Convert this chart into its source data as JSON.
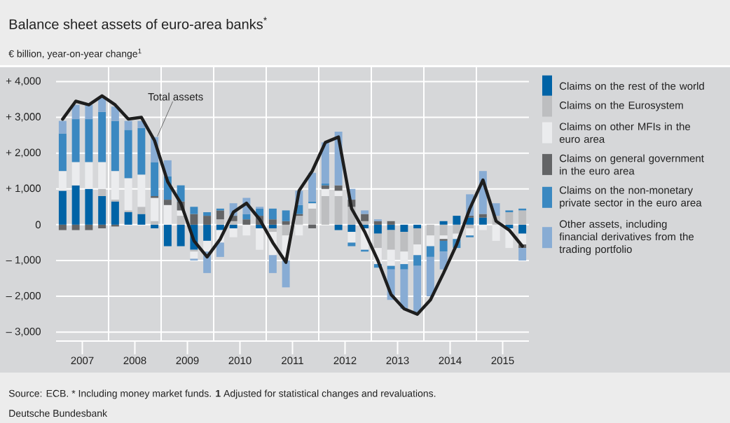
{
  "chart_data": {
    "type": "bar",
    "stacked": true,
    "title": "Balance sheet assets of euro-area banks$^{*}$",
    "subtitle": "€ billion, year-on-year change$^{1}$",
    "annotations": [
      "Source: ECB. * Including money market funds. **1** Adjusted for statistical changes and revaluations.",
      "Deutsche Bundesbank"
    ],
    "x": [
      2007.125,
      2007.375,
      2007.625,
      2007.875,
      2008.125,
      2008.375,
      2008.625,
      2008.875,
      2009.125,
      2009.375,
      2009.625,
      2009.875,
      2010.125,
      2010.375,
      2010.625,
      2010.875,
      2011.125,
      2011.375,
      2011.625,
      2011.875,
      2012.125,
      2012.375,
      2012.625,
      2012.875,
      2013.125,
      2013.375,
      2013.625,
      2013.875,
      2014.125,
      2014.375,
      2014.625,
      2014.875,
      2015.125,
      2015.375,
      2015.625,
      2015.875
    ],
    "xlim": [
      2007,
      2016
    ],
    "xticks": [
      {
        "value": 2007.5,
        "label": "2007"
      },
      {
        "value": 2008.5,
        "label": "2008"
      },
      {
        "value": 2009.5,
        "label": "2009"
      },
      {
        "value": 2010.5,
        "label": "2010"
      },
      {
        "value": 2011.5,
        "label": "2011"
      },
      {
        "value": 2012.5,
        "label": "2012"
      },
      {
        "value": 2013.5,
        "label": "2013"
      },
      {
        "value": 2014.5,
        "label": "2014"
      },
      {
        "value": 2015.5,
        "label": "2015"
      }
    ],
    "ylim": [
      -3250,
      4400
    ],
    "yticks": [
      {
        "value": 4000,
        "label": "+ 4,000"
      },
      {
        "value": 3000,
        "label": "+ 3,000"
      },
      {
        "value": 2000,
        "label": "+ 2,000"
      },
      {
        "value": 1000,
        "label": "+ 1,000"
      },
      0,
      {
        "value": -1000,
        "label": "– 1,000"
      },
      {
        "value": -2000,
        "label": "– 2,000"
      },
      {
        "value": -3000,
        "label": "– 3,000"
      }
    ],
    "grid": "y",
    "legend": "right",
    "ref_lines": [
      {
        "axis": "x",
        "value": 2008,
        "color": "#ffffff"
      },
      {
        "axis": "x",
        "value": 2009,
        "color": "#ffffff"
      },
      {
        "axis": "x",
        "value": 2010,
        "color": "#ffffff"
      },
      {
        "axis": "x",
        "value": 2011,
        "color": "#ffffff"
      },
      {
        "axis": "x",
        "value": 2012,
        "color": "#ffffff"
      },
      {
        "axis": "x",
        "value": 2013,
        "color": "#ffffff"
      },
      {
        "axis": "x",
        "value": 2014,
        "color": "#ffffff"
      },
      {
        "axis": "x",
        "value": 2015,
        "color": "#ffffff"
      }
    ],
    "series": [
      {
        "name": "Claims on the rest of the world",
        "color": "#0063a6",
        "values": [
          950,
          1100,
          1000,
          800,
          650,
          350,
          300,
          -100,
          -600,
          -600,
          -700,
          -450,
          -150,
          -100,
          0,
          -100,
          -100,
          0,
          0,
          0,
          0,
          -150,
          -200,
          -100,
          -250,
          -150,
          -200,
          -100,
          0,
          100,
          250,
          200,
          200,
          0,
          -100,
          -250
        ]
      },
      {
        "name": "Claims on the Eurosystem",
        "color": "#bdbec0",
        "values": [
          0,
          0,
          0,
          200,
          50,
          50,
          200,
          100,
          0,
          250,
          -50,
          0,
          150,
          100,
          0,
          0,
          -100,
          -300,
          250,
          450,
          800,
          800,
          500,
          100,
          -400,
          -550,
          -550,
          -450,
          -300,
          -300,
          -250,
          -100,
          0,
          250,
          350,
          400
        ]
      },
      {
        "name": "Claims on other MFIs in the euro area",
        "color": "#ebecee",
        "values": [
          550,
          650,
          750,
          750,
          800,
          900,
          900,
          650,
          550,
          150,
          -200,
          -300,
          -350,
          -250,
          -300,
          -600,
          -650,
          -700,
          -300,
          150,
          200,
          150,
          -300,
          -600,
          -450,
          -450,
          -350,
          -300,
          -300,
          -100,
          -150,
          -200,
          -150,
          -450,
          -550,
          -300
        ]
      },
      {
        "name": "Claims on general government in the euro area",
        "color": "#636466",
        "values": [
          -150,
          -150,
          -150,
          -100,
          -50,
          0,
          0,
          50,
          150,
          250,
          300,
          250,
          250,
          150,
          150,
          250,
          150,
          100,
          50,
          -100,
          100,
          150,
          200,
          200,
          100,
          100,
          0,
          0,
          0,
          -50,
          0,
          50,
          100,
          null,
          0,
          -100
        ]
      },
      {
        "name": "Claims on the non-monetary private sector in the euro area",
        "color": "#3a88c1",
        "values": [
          1050,
          1200,
          1200,
          1400,
          1400,
          1350,
          1300,
          950,
          650,
          450,
          200,
          100,
          50,
          0,
          150,
          200,
          300,
          300,
          250,
          50,
          50,
          0,
          -100,
          -50,
          -100,
          -100,
          -150,
          -300,
          -300,
          -300,
          -250,
          -50,
          0,
          0,
          50,
          50
        ]
      },
      {
        "name": "Other assets, including financial derivatives from the trading portfolio",
        "color": "#88acd4",
        "values": [
          350,
          400,
          400,
          400,
          400,
          250,
          200,
          700,
          450,
          0,
          -50,
          -600,
          -400,
          350,
          450,
          50,
          -500,
          -750,
          400,
          800,
          1150,
          1500,
          300,
          100,
          50,
          -850,
          -1100,
          -1300,
          -1100,
          -500,
          0,
          600,
          1200,
          350,
          0,
          -350
        ]
      },
      {
        "name": "Total assets",
        "type": "line",
        "color": "#1e1e1e",
        "values": [
          2950,
          3450,
          3350,
          3600,
          3350,
          2950,
          3000,
          2350,
          1200,
          600,
          -450,
          -900,
          -400,
          350,
          600,
          150,
          -500,
          -1050,
          950,
          1500,
          2300,
          2450,
          450,
          -200,
          -1000,
          -1950,
          -2350,
          -2500,
          -2100,
          -1350,
          -550,
          450,
          1250,
          100,
          -150,
          -600
        ]
      }
    ]
  }
}
